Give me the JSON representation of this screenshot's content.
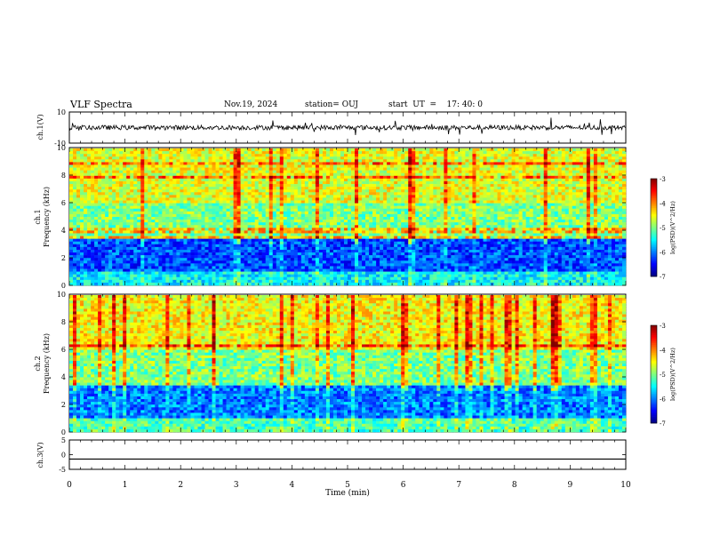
{
  "header": {
    "title": "VLF Spectra",
    "date": "Nov.19, 2024",
    "station": "station= OUJ",
    "start": "start  UT  =    17: 40: 0"
  },
  "chart_data": [
    {
      "type": "line",
      "panel": "ch1-waveform",
      "ylabel": "ch.1(V)",
      "ylim": [
        -10,
        10
      ],
      "yticks": [
        "10",
        "-10"
      ],
      "baseline": 0,
      "appearance": "noisy waveform around 0 V"
    },
    {
      "type": "heatmap",
      "panel": "ch1-spectrogram",
      "ylabel": "ch.1\nFrequency (kHz)",
      "ylim": [
        0,
        10
      ],
      "yticks": [
        "0",
        "2",
        "4",
        "6",
        "8",
        "10"
      ],
      "colorbar": {
        "label": "log(PSD)(V^2/Hz)",
        "range": [
          -7,
          -3
        ],
        "ticks": [
          "-3",
          "-4",
          "-5",
          "-6",
          "-7"
        ]
      },
      "bands": [
        {
          "range_khz": [
            0,
            1
          ],
          "level": -5.5
        },
        {
          "range_khz": [
            1,
            3.5
          ],
          "level": -6.2
        },
        {
          "range_khz": [
            3.5,
            6
          ],
          "level": -5.0
        },
        {
          "range_khz": [
            6,
            10
          ],
          "level": -4.6
        }
      ]
    },
    {
      "type": "heatmap",
      "panel": "ch2-spectrogram",
      "ylabel": "ch.2\nFrequency (kHz)",
      "ylim": [
        0,
        10
      ],
      "yticks": [
        "0",
        "2",
        "4",
        "6",
        "8",
        "10"
      ],
      "colorbar": {
        "label": "log(PSD)(V^2/Hz)",
        "range": [
          -7,
          -3
        ],
        "ticks": [
          "-3",
          "-4",
          "-5",
          "-6",
          "-7"
        ]
      },
      "bands": [
        {
          "range_khz": [
            0,
            1
          ],
          "level": -5.2
        },
        {
          "range_khz": [
            1,
            3.5
          ],
          "level": -6.0
        },
        {
          "range_khz": [
            3.5,
            6
          ],
          "level": -5.0
        },
        {
          "range_khz": [
            6,
            10
          ],
          "level": -4.5
        }
      ]
    },
    {
      "type": "line",
      "panel": "ch3-trace",
      "ylabel": "ch.3(V)",
      "ylim": [
        -5,
        5
      ],
      "yticks": [
        "5",
        "0",
        "-5"
      ],
      "value": -1.5,
      "appearance": "flat line"
    }
  ],
  "xaxis": {
    "label": "Time (min)",
    "xlim": [
      0,
      10
    ],
    "ticks": [
      "0",
      "1",
      "2",
      "3",
      "4",
      "5",
      "6",
      "7",
      "8",
      "9",
      "10"
    ]
  },
  "colors": {
    "waveform": "#000000",
    "background": "#ffffff"
  }
}
